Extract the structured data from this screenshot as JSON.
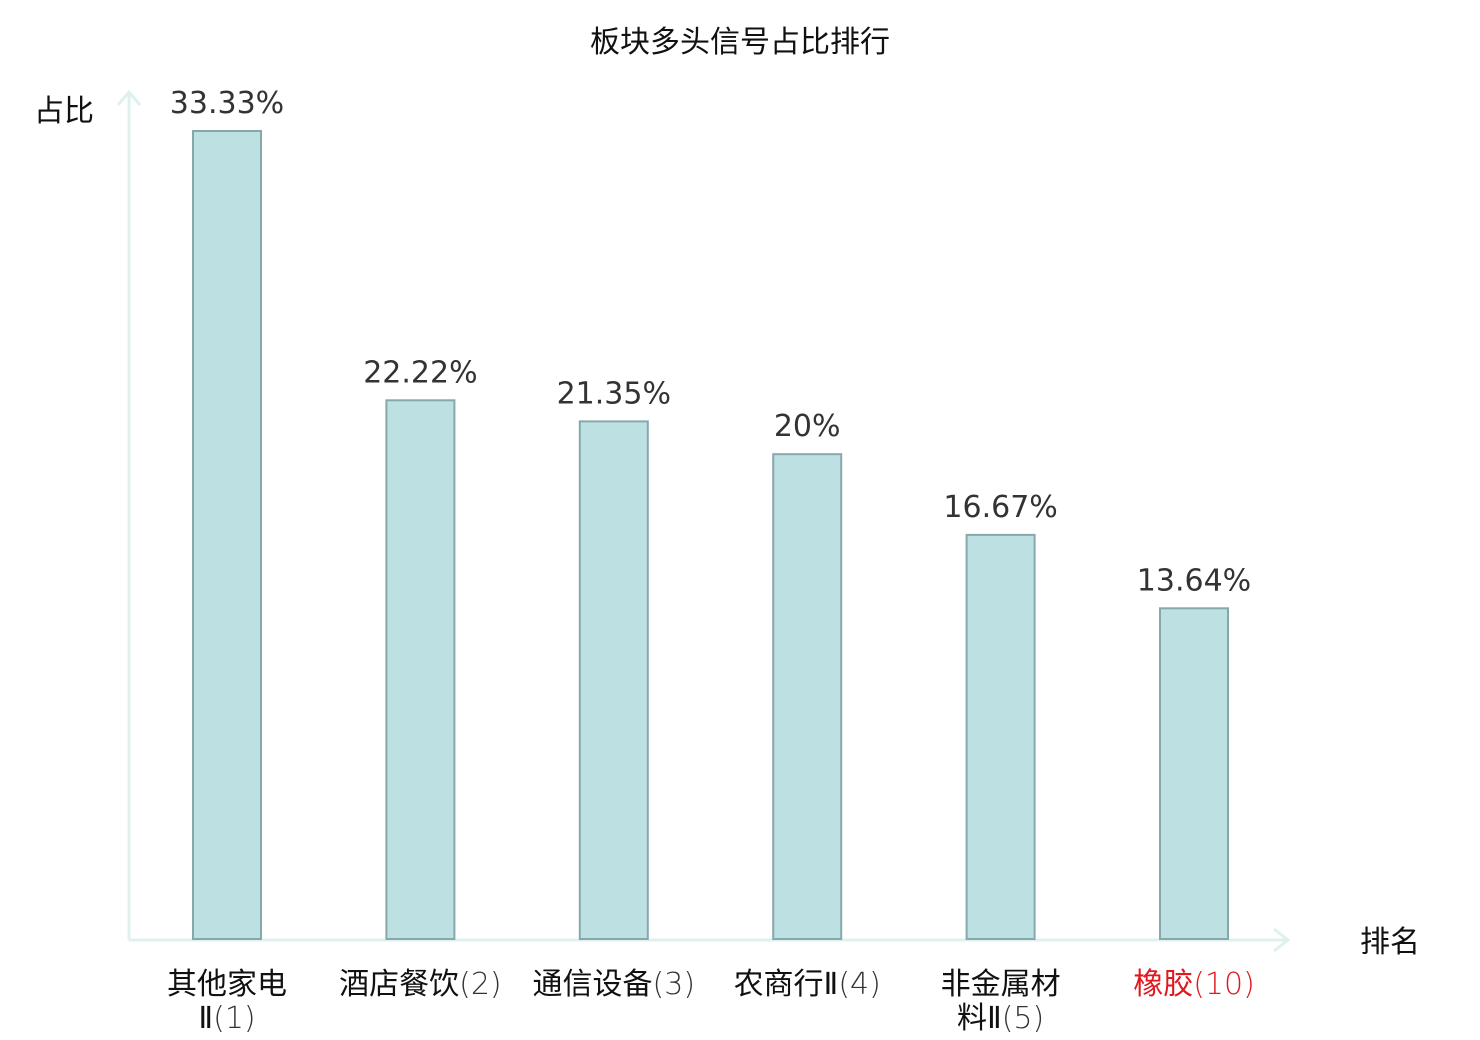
{
  "chart_data": {
    "type": "bar",
    "title": "板块多头信号占比排行",
    "xlabel": "排名",
    "ylabel": "占比",
    "ylim": [
      0,
      35
    ],
    "grid": false,
    "categories": [
      {
        "lines": [
          {
            "name": "其他家电",
            "rank": ""
          },
          {
            "name": "Ⅱ",
            "rank": "(1)"
          }
        ],
        "highlight": false
      },
      {
        "lines": [
          {
            "name": "酒店餐饮",
            "rank": "(2)"
          }
        ],
        "highlight": false
      },
      {
        "lines": [
          {
            "name": "通信设备",
            "rank": "(3)"
          }
        ],
        "highlight": false
      },
      {
        "lines": [
          {
            "name": "农商行Ⅱ",
            "rank": "(4)"
          }
        ],
        "highlight": false
      },
      {
        "lines": [
          {
            "name": "非金属材",
            "rank": ""
          },
          {
            "name": "料Ⅱ",
            "rank": "(5)"
          }
        ],
        "highlight": false
      },
      {
        "lines": [
          {
            "name": "橡胶",
            "rank": "(10)"
          }
        ],
        "highlight": true
      }
    ],
    "values": [
      33.33,
      22.22,
      21.35,
      20,
      16.67,
      13.64
    ],
    "value_labels": [
      "33.33%",
      "22.22%",
      "21.35%",
      "20%",
      "16.67%",
      "13.64%"
    ]
  },
  "colors": {
    "bar_fill": "#bde0e3",
    "bar_stroke": "#86a8ab",
    "axis": "#dff1ef",
    "text": "#111111",
    "value_text": "#333333",
    "highlight": "#e0191f",
    "number_text": "#333333"
  }
}
